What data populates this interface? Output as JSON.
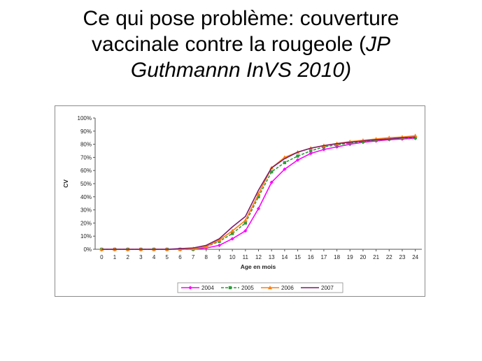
{
  "slide": {
    "title_line1": "Ce qui pose problème: couverture",
    "title_line2_plain": "vaccinale contre la rougeole (",
    "title_line2_italic": "JP",
    "title_line3_italic": "Guthmannn InVS 2010)"
  },
  "chart_data": {
    "type": "line",
    "title": "",
    "xlabel": "Age en mois",
    "ylabel": "CV",
    "x": [
      0,
      1,
      2,
      3,
      4,
      5,
      6,
      7,
      8,
      9,
      10,
      11,
      12,
      13,
      14,
      15,
      16,
      17,
      18,
      19,
      20,
      21,
      22,
      23,
      24
    ],
    "ylim": [
      0,
      100
    ],
    "yticks": [
      "0%",
      "10%",
      "20%",
      "30%",
      "40%",
      "50%",
      "60%",
      "70%",
      "80%",
      "90%",
      "100%"
    ],
    "grid": false,
    "legend_position": "bottom",
    "series": [
      {
        "name": "2004",
        "color": "#ff00ff",
        "marker": "diamond",
        "dash": "solid",
        "values": [
          0,
          0,
          0,
          0,
          0,
          0,
          0,
          0,
          1,
          3,
          8,
          14,
          31,
          51,
          61,
          68,
          73,
          76,
          78,
          80,
          81.5,
          82.5,
          83.5,
          84,
          84.5
        ]
      },
      {
        "name": "2005",
        "color": "#2e9b3c",
        "marker": "square",
        "dash": "dashed",
        "values": [
          0,
          0,
          0,
          0,
          0,
          0,
          0,
          0,
          2,
          6,
          12,
          20,
          40,
          59,
          66,
          71,
          75,
          78,
          79.5,
          81,
          82,
          83,
          84,
          84.5,
          85
        ]
      },
      {
        "name": "2006",
        "color": "#ff7f0e",
        "marker": "triangle",
        "dash": "solid",
        "values": [
          0,
          0,
          0,
          0,
          0,
          0,
          0,
          0.5,
          2,
          7,
          14,
          22,
          42,
          62,
          70,
          74,
          77,
          79,
          80.5,
          82,
          83,
          84,
          85,
          85.5,
          86.5
        ]
      },
      {
        "name": "2007",
        "color": "#7b1a6e",
        "marker": "none",
        "dash": "solid",
        "values": [
          0,
          0,
          0,
          0,
          0,
          0,
          0.5,
          1,
          3,
          8,
          17,
          25,
          45,
          62,
          69,
          74,
          77,
          79,
          80.5,
          81.5,
          82.5,
          83.5,
          84,
          85,
          85.5
        ]
      }
    ]
  }
}
